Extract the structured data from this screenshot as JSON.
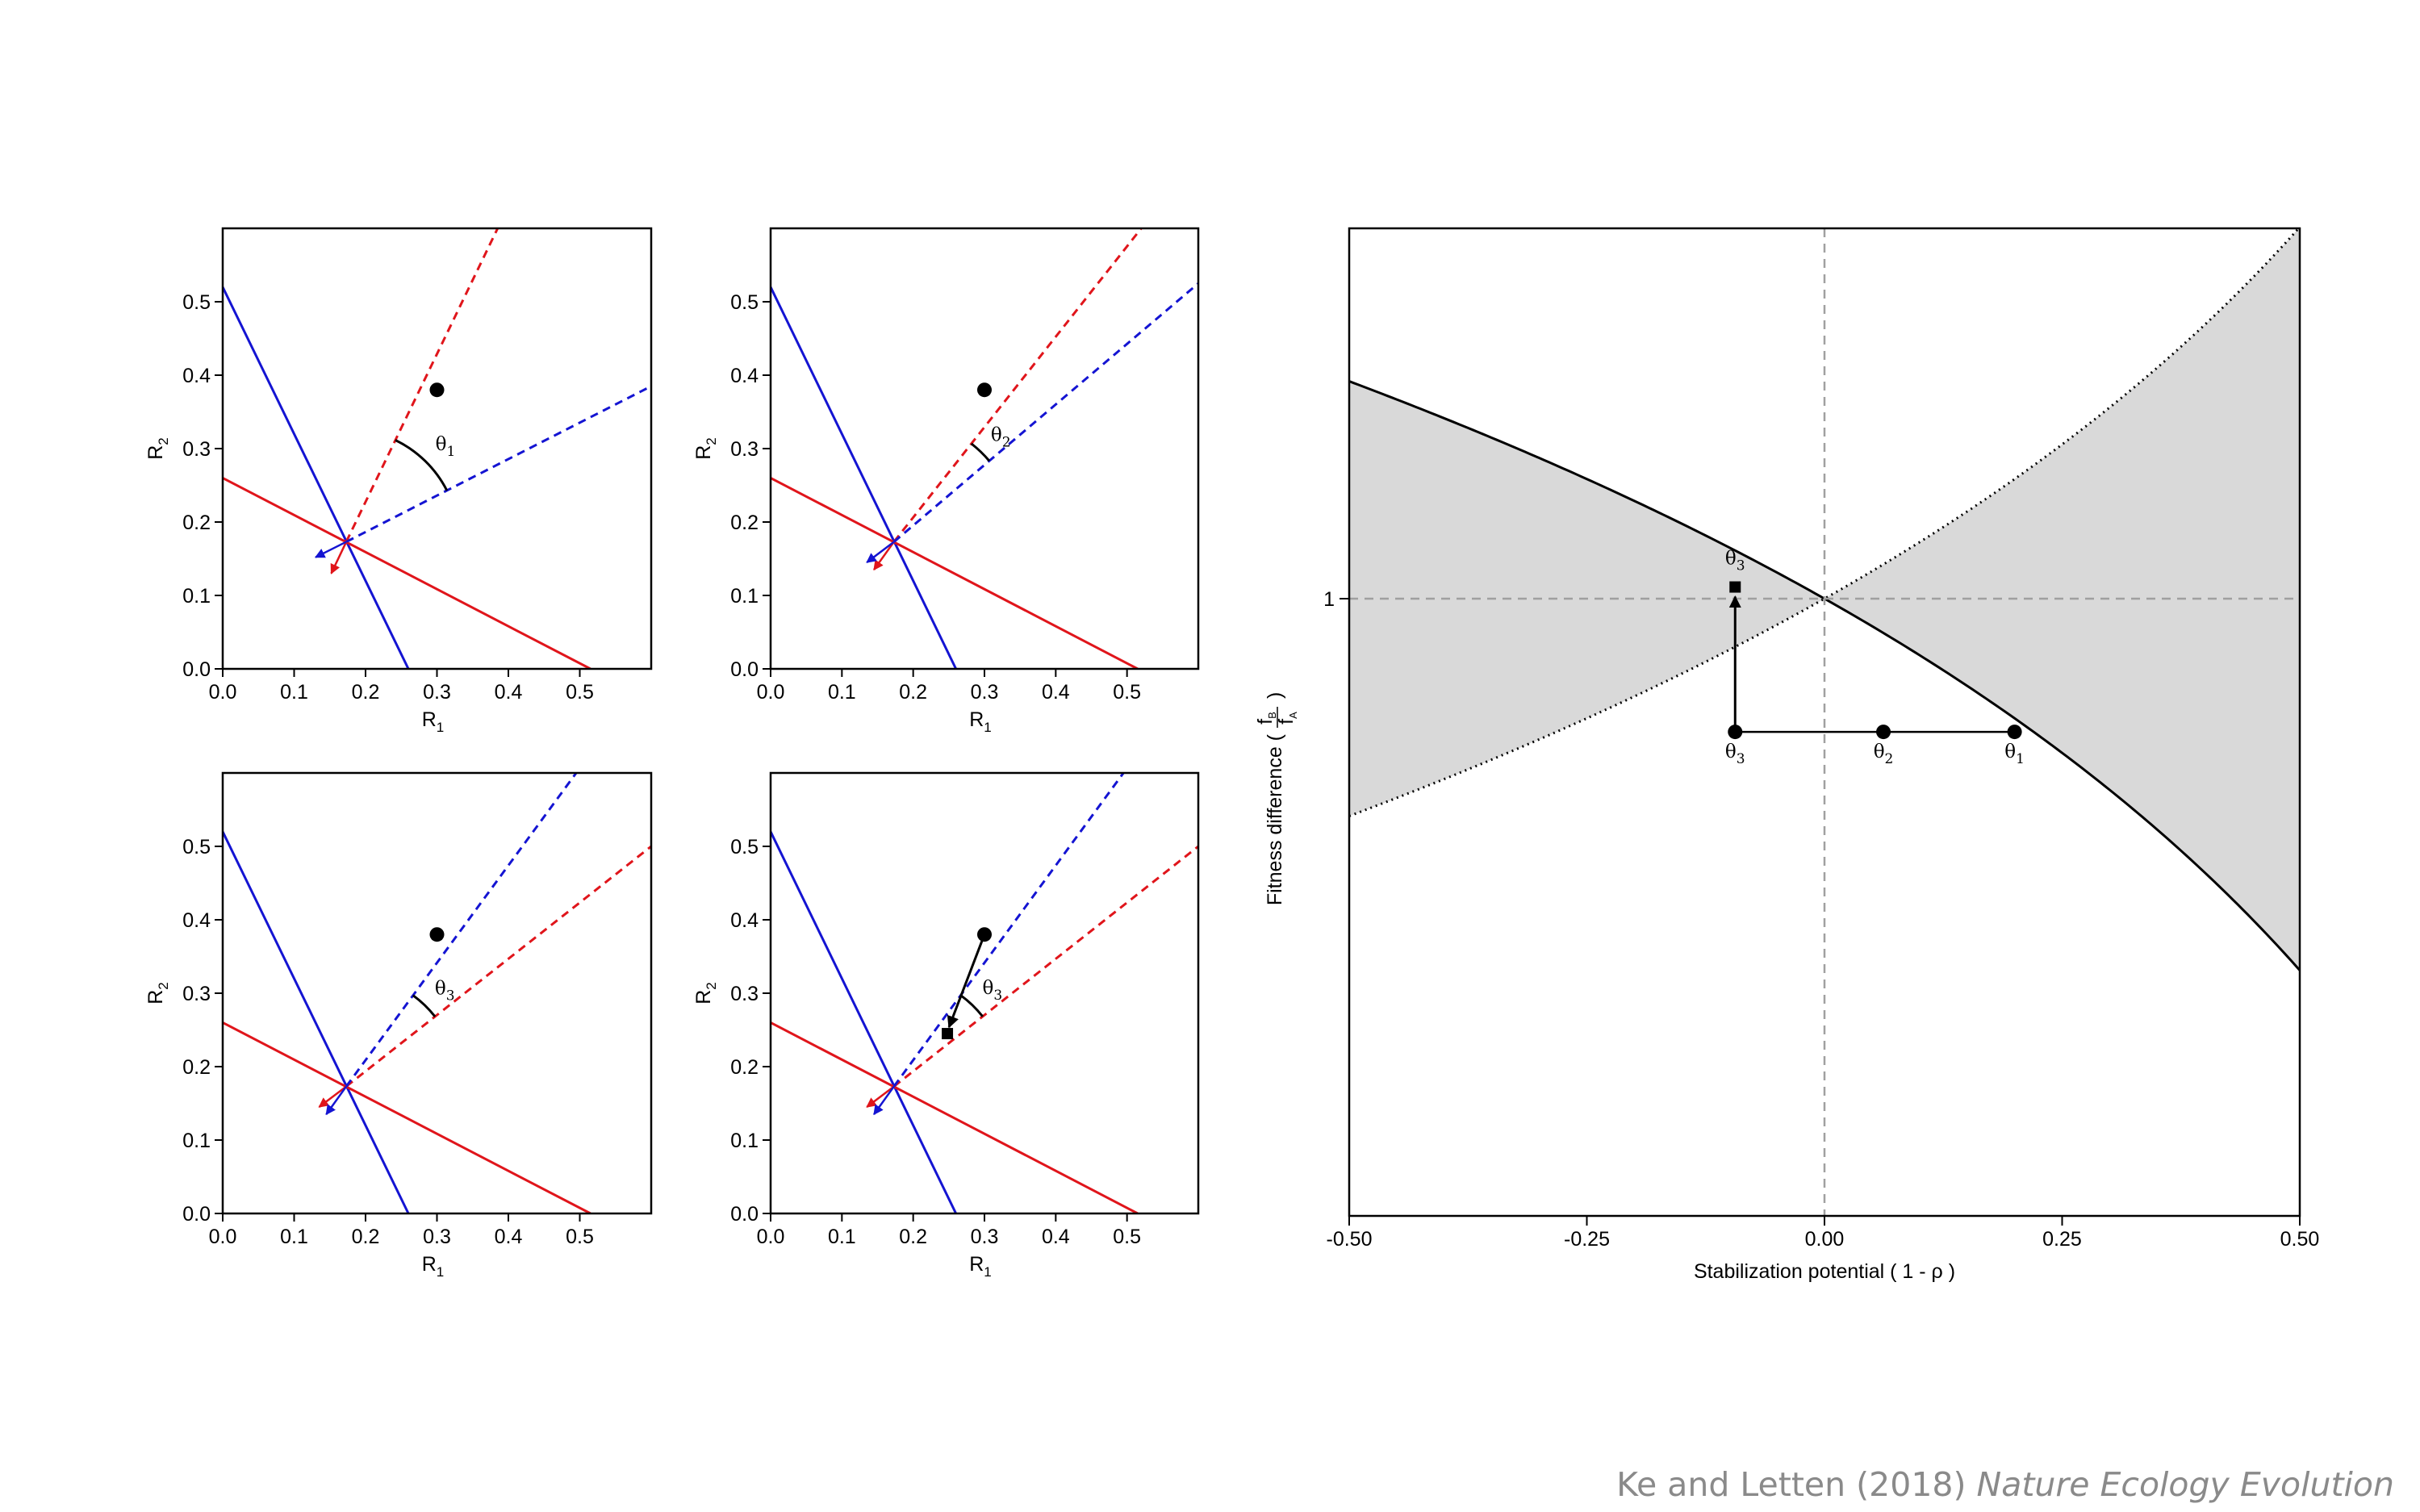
{
  "colors": {
    "red": "#e0151b",
    "blue": "#1414d2",
    "shade": "#d9d9d9",
    "ref": "#a0a0a0",
    "black": "#000000"
  },
  "chart_data": [
    {
      "type": "line",
      "panel": "top-left",
      "xlabel": "R",
      "xlabel_sub": "1",
      "ylabel": "R",
      "ylabel_sub": "2",
      "xlim": [
        0,
        0.6
      ],
      "ylim": [
        0,
        0.6
      ],
      "xticks": [
        "0.0",
        "0.1",
        "0.2",
        "0.3",
        "0.4",
        "0.5"
      ],
      "yticks": [
        "0.0",
        "0.1",
        "0.2",
        "0.3",
        "0.4",
        "0.5"
      ],
      "zngi_red": [
        [
          0,
          0.26
        ],
        [
          0.515,
          0
        ]
      ],
      "zngi_blue": [
        [
          0,
          0.52
        ],
        [
          0.26,
          0
        ]
      ],
      "equilibrium": [
        0.173,
        0.173
      ],
      "supply_point": [
        0.3,
        0.38
      ],
      "vector_red_end": [
        0.385,
        0.6
      ],
      "vector_blue_end": [
        0.6,
        0.385
      ],
      "consumption_red_tip": [
        0.152,
        0.13
      ],
      "consumption_blue_tip": [
        0.13,
        0.152
      ],
      "angle_label": "θ",
      "angle_sub": "1"
    },
    {
      "type": "line",
      "panel": "top-right",
      "xlabel": "R",
      "xlabel_sub": "1",
      "ylabel": "R",
      "ylabel_sub": "2",
      "xlim": [
        0,
        0.6
      ],
      "ylim": [
        0,
        0.6
      ],
      "xticks": [
        "0.0",
        "0.1",
        "0.2",
        "0.3",
        "0.4",
        "0.5"
      ],
      "yticks": [
        "0.0",
        "0.1",
        "0.2",
        "0.3",
        "0.4",
        "0.5"
      ],
      "zngi_red": [
        [
          0,
          0.26
        ],
        [
          0.515,
          0
        ]
      ],
      "zngi_blue": [
        [
          0,
          0.52
        ],
        [
          0.26,
          0
        ]
      ],
      "equilibrium": [
        0.173,
        0.173
      ],
      "supply_point": [
        0.3,
        0.38
      ],
      "vector_red_end": [
        0.52,
        0.6
      ],
      "vector_blue_end": [
        0.6,
        0.525
      ],
      "consumption_red_tip": [
        0.145,
        0.135
      ],
      "consumption_blue_tip": [
        0.135,
        0.145
      ],
      "angle_label": "θ",
      "angle_sub": "2"
    },
    {
      "type": "line",
      "panel": "bottom-left",
      "xlabel": "R",
      "xlabel_sub": "1",
      "ylabel": "R",
      "ylabel_sub": "2",
      "xlim": [
        0,
        0.6
      ],
      "ylim": [
        0,
        0.6
      ],
      "xticks": [
        "0.0",
        "0.1",
        "0.2",
        "0.3",
        "0.4",
        "0.5"
      ],
      "yticks": [
        "0.0",
        "0.1",
        "0.2",
        "0.3",
        "0.4",
        "0.5"
      ],
      "zngi_red": [
        [
          0,
          0.26
        ],
        [
          0.515,
          0
        ]
      ],
      "zngi_blue": [
        [
          0,
          0.52
        ],
        [
          0.26,
          0
        ]
      ],
      "equilibrium": [
        0.173,
        0.173
      ],
      "supply_point": [
        0.3,
        0.38
      ],
      "vector_red_end": [
        0.6,
        0.5
      ],
      "vector_blue_end": [
        0.495,
        0.6
      ],
      "consumption_red_tip": [
        0.135,
        0.145
      ],
      "consumption_blue_tip": [
        0.145,
        0.135
      ],
      "angle_label": "θ",
      "angle_sub": "3"
    },
    {
      "type": "line",
      "panel": "bottom-right",
      "xlabel": "R",
      "xlabel_sub": "1",
      "ylabel": "R",
      "ylabel_sub": "2",
      "xlim": [
        0,
        0.6
      ],
      "ylim": [
        0,
        0.6
      ],
      "xticks": [
        "0.0",
        "0.1",
        "0.2",
        "0.3",
        "0.4",
        "0.5"
      ],
      "yticks": [
        "0.0",
        "0.1",
        "0.2",
        "0.3",
        "0.4",
        "0.5"
      ],
      "zngi_red": [
        [
          0,
          0.26
        ],
        [
          0.515,
          0
        ]
      ],
      "zngi_blue": [
        [
          0,
          0.52
        ],
        [
          0.26,
          0
        ]
      ],
      "equilibrium": [
        0.173,
        0.173
      ],
      "supply_point": [
        0.3,
        0.38
      ],
      "shifted_supply_point": [
        0.248,
        0.245
      ],
      "vector_red_end": [
        0.6,
        0.5
      ],
      "vector_blue_end": [
        0.495,
        0.6
      ],
      "consumption_red_tip": [
        0.135,
        0.145
      ],
      "consumption_blue_tip": [
        0.145,
        0.135
      ],
      "angle_label": "θ",
      "angle_sub": "3"
    },
    {
      "type": "line",
      "panel": "right",
      "xlabel": "Stabilization potential ( 1 - ρ )",
      "ylabel": "Fitness difference (",
      "ylabel_frac_num": "f",
      "ylabel_frac_num_sub": "B",
      "ylabel_frac_den": "f",
      "ylabel_frac_den_sub": "A",
      "ylabel_close": ")",
      "xlim": [
        -0.5,
        0.5
      ],
      "log_ylim": [
        -0.5,
        0.3
      ],
      "xticks": [
        -0.5,
        -0.25,
        0,
        0.25,
        0.5
      ],
      "xtick_labels": [
        "-0.50",
        "-0.25",
        "0.00",
        "0.25",
        "0.50"
      ],
      "yticks": [
        1
      ],
      "ytick_labels": [
        "1"
      ],
      "reference_lines": {
        "x": 0,
        "y": 1
      },
      "points": [
        {
          "x": 0.2,
          "y": 0.78,
          "label": "θ",
          "sub": "1"
        },
        {
          "x": 0.062,
          "y": 0.78,
          "label": "θ",
          "sub": "2"
        },
        {
          "x": -0.094,
          "y": 0.78,
          "label": "θ",
          "sub": "3"
        }
      ],
      "shifted_point": {
        "x": -0.094,
        "y": 1.022,
        "label": "θ",
        "sub": "3"
      }
    }
  ],
  "citation": {
    "authors": "Ke and Letten (2018)",
    "journal": "Nature Ecology Evolution"
  }
}
